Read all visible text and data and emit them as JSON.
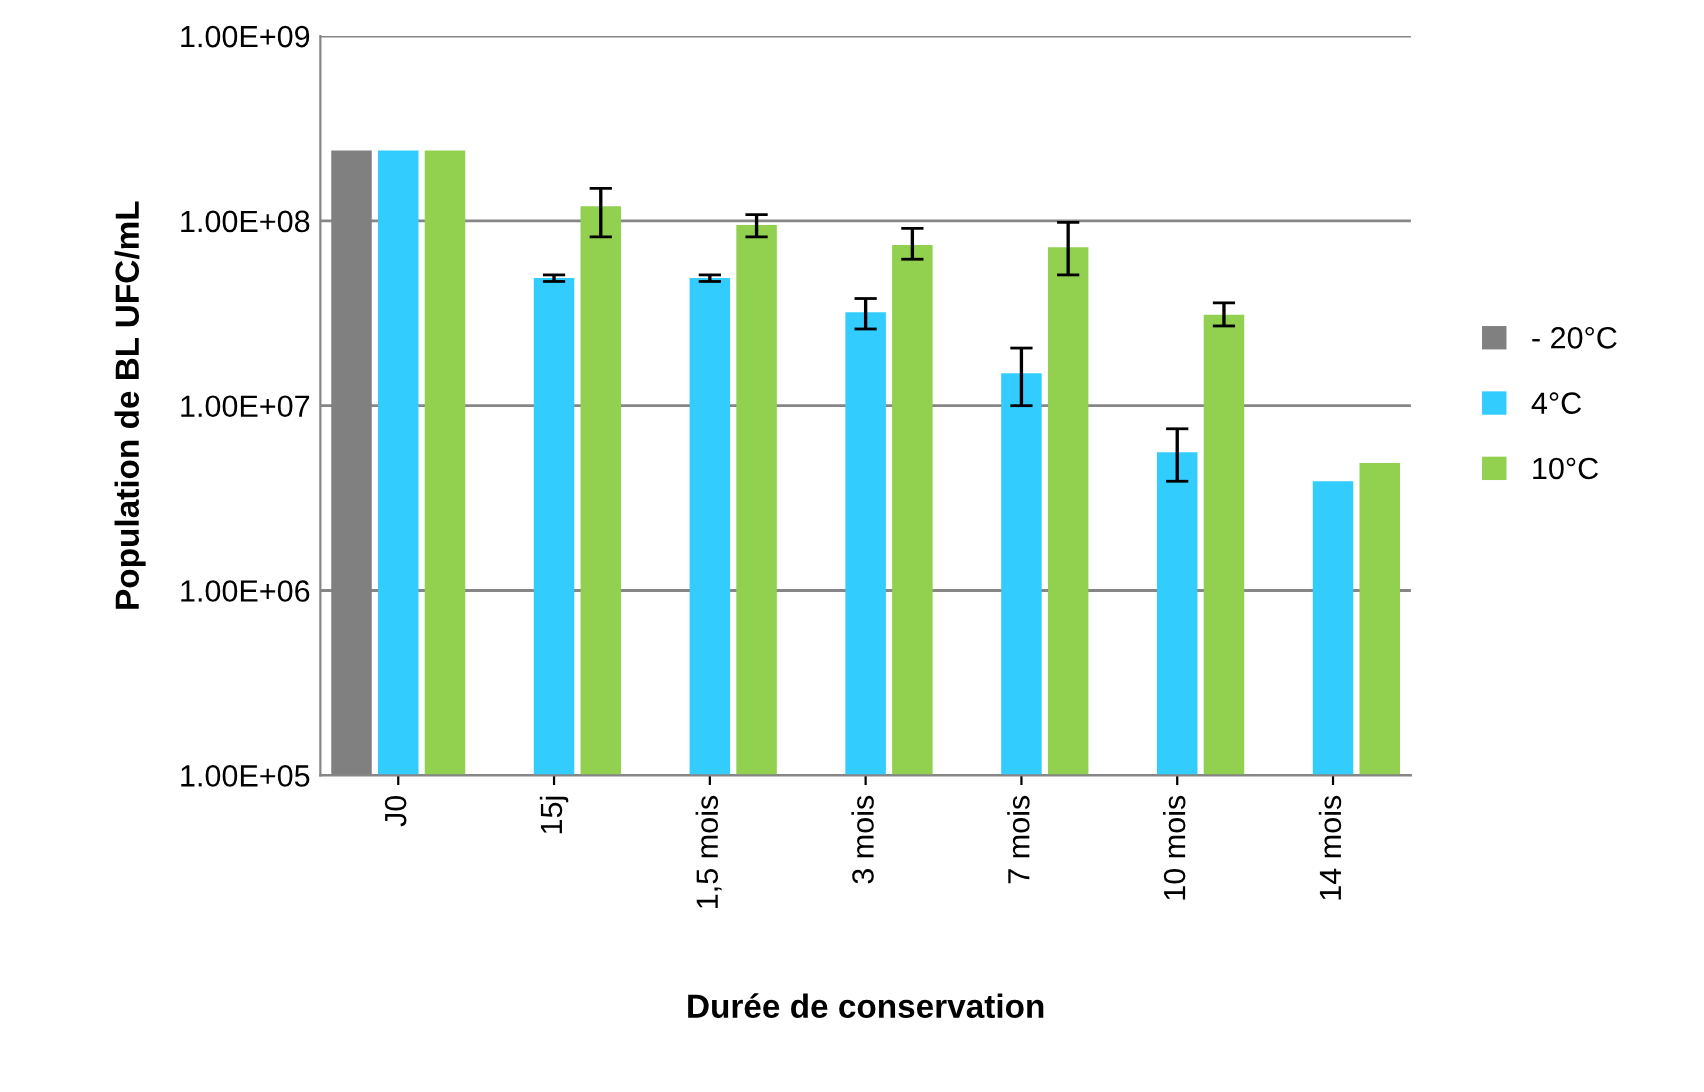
{
  "chart_data": {
    "type": "bar",
    "xlabel": "Durée de conservation",
    "ylabel": "Population de BL UFC/mL",
    "categories": [
      "J0",
      "15j",
      "1,5 mois",
      "3 mois",
      "7 mois",
      "10 mois",
      "14 mois"
    ],
    "series": [
      {
        "name": "- 20°C",
        "color": "#808080",
        "values": [
          240000000.0,
          null,
          null,
          null,
          null,
          null,
          null
        ]
      },
      {
        "name": "4°C",
        "color": "#33ccff",
        "values": [
          240000000.0,
          49000000.0,
          49000000.0,
          32000000.0,
          15000000.0,
          5600000.0,
          3900000.0
        ],
        "errors": [
          null,
          [
            47000000.0,
            51000000.0
          ],
          [
            47000000.0,
            51000000.0
          ],
          [
            26000000.0,
            38000000.0
          ],
          [
            10000000.0,
            20500000.0
          ],
          [
            3900000.0,
            7500000.0
          ],
          null
        ]
      },
      {
        "name": "10°C",
        "color": "#92d050",
        "values": [
          240000000.0,
          120000000.0,
          95000000.0,
          74000000.0,
          72000000.0,
          31000000.0,
          4900000.0
        ],
        "errors": [
          null,
          [
            82000000.0,
            150000000.0
          ],
          [
            82000000.0,
            108000000.0
          ],
          [
            62000000.0,
            91000000.0
          ],
          [
            51000000.0,
            98000000.0
          ],
          [
            27000000.0,
            36000000.0
          ],
          null
        ]
      }
    ],
    "log": "y",
    "ylim": [
      100000.0,
      1000000000.0
    ],
    "yticks": [
      {
        "value": 100000.0,
        "label": "1.00E+05"
      },
      {
        "value": 1000000.0,
        "label": "1.00E+06"
      },
      {
        "value": 10000000.0,
        "label": "1.00E+07"
      },
      {
        "value": 100000000.0,
        "label": "1.00E+08"
      },
      {
        "value": 1000000000.0,
        "label": "1.00E+09"
      }
    ],
    "grid": "y",
    "legend": "right"
  }
}
